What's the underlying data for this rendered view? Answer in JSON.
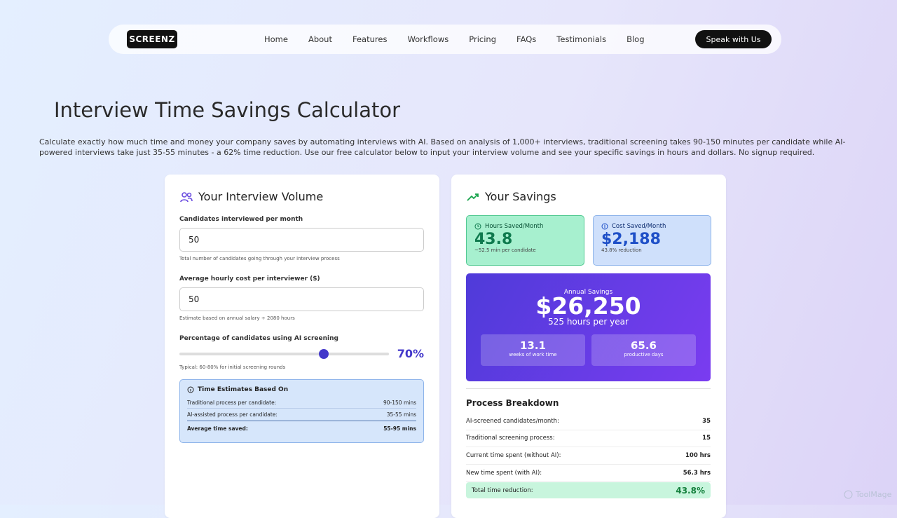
{
  "nav": {
    "logo": "SCREENZ",
    "links": [
      "Home",
      "About",
      "Features",
      "Workflows",
      "Pricing",
      "FAQs",
      "Testimonials",
      "Blog"
    ],
    "cta": "Speak with Us"
  },
  "header": {
    "title": "Interview Time Savings Calculator",
    "description": "Calculate exactly how much time and money your company saves by automating interviews with AI. Based on analysis of 1,000+ interviews, traditional screening takes 90-150 minutes per candidate while AI-powered interviews take just 35-55 minutes - a 62% time reduction. Use our free calculator below to input your interview volume and see your specific savings in hours and dollars. No signup required."
  },
  "volume_card": {
    "title": "Your Interview Volume",
    "fields": [
      {
        "label": "Candidates interviewed per month",
        "value": "50",
        "help": "Total number of candidates going through your interview process"
      },
      {
        "label": "Average hourly cost per interviewer ($)",
        "value": "50",
        "help": "Estimate based on annual salary ÷ 2080 hours"
      }
    ],
    "slider": {
      "label": "Percentage of candidates using AI screening",
      "value": "70%",
      "help": "Typical: 60-80% for initial screening rounds"
    },
    "estimates": {
      "title": "Time Estimates Based On",
      "rows": [
        [
          "Traditional process per candidate:",
          "90-150 mins"
        ],
        [
          "AI-assisted process per candidate:",
          "35-55 mins"
        ],
        [
          "Average time saved:",
          "55-95 mins"
        ]
      ]
    }
  },
  "savings_card": {
    "title": "Your Savings",
    "hours": {
      "label": "Hours Saved/Month",
      "value": "43.8",
      "note": "~52.5 min per candidate"
    },
    "cost": {
      "label": "Cost Saved/Month",
      "value": "$2,188",
      "note": "43.8% reduction"
    },
    "annual": {
      "label": "Annual Savings",
      "value": "$26,250",
      "sub": "525 hours per year",
      "stats": [
        {
          "value": "13.1",
          "label": "weeks of work time"
        },
        {
          "value": "65.6",
          "label": "productive days"
        }
      ]
    },
    "breakdown": {
      "title": "Process Breakdown",
      "rows": [
        [
          "AI-screened candidates/month:",
          "35"
        ],
        [
          "Traditional screening process:",
          "15"
        ],
        [
          "Current time spent (without AI):",
          "100 hrs"
        ],
        [
          "New time spent (with AI):",
          "56.3 hrs"
        ]
      ],
      "total": [
        "Total time reduction:",
        "43.8%"
      ]
    }
  },
  "watermark": "ToolMage"
}
